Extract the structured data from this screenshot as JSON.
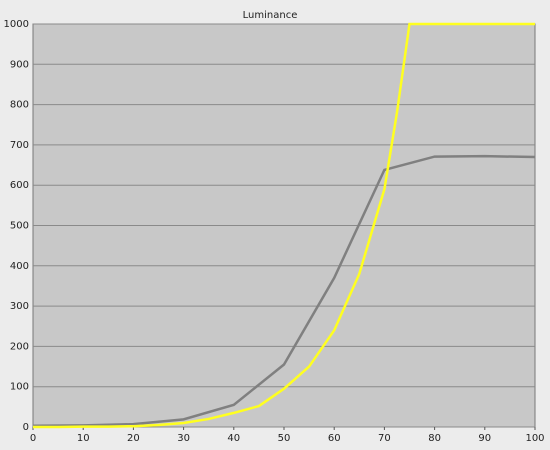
{
  "chart_data": {
    "type": "line",
    "title": "Luminance",
    "xlim": [
      0,
      100
    ],
    "xticks": [
      0,
      10,
      20,
      30,
      40,
      50,
      60,
      70,
      80,
      90,
      100
    ],
    "ylim": [
      0,
      1000
    ],
    "yticks": [
      0,
      100,
      200,
      300,
      400,
      500,
      600,
      700,
      800,
      900,
      1000
    ],
    "grid": true,
    "series": [
      {
        "color": "#808080",
        "x": [
          0,
          10,
          20,
          30,
          40,
          50,
          60,
          70,
          80,
          90,
          100
        ],
        "values": [
          3,
          4,
          7,
          19,
          55,
          155,
          370,
          638,
          671,
          672,
          670
        ]
      },
      {
        "color": "#ffff20",
        "x": [
          0,
          5,
          10,
          15,
          20,
          25,
          30,
          35,
          40,
          45,
          50,
          55,
          60,
          65,
          70,
          72.5,
          75,
          80,
          90,
          100
        ],
        "values": [
          0,
          0,
          1,
          1,
          2,
          5,
          10,
          20,
          35,
          52,
          95,
          150,
          240,
          380,
          590,
          780,
          1000,
          1000,
          1000,
          1000
        ]
      }
    ]
  }
}
